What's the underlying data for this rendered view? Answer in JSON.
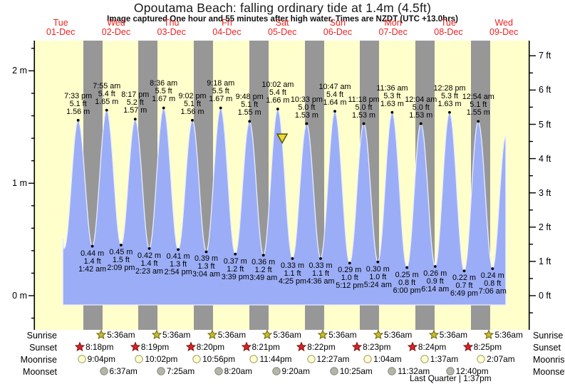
{
  "header": {
    "title": "Opoutama Beach: falling  ordinary tide at 1.4m (4.5ft)",
    "subtitle": "Image captured One hour and 55 minutes after high water. Times are NZDT (UTC +13.0hrs)"
  },
  "chart_data": {
    "type": "area",
    "title": "Opoutama Beach: falling  ordinary tide at 1.4m (4.5ft)",
    "days": [
      {
        "name": "Tue",
        "date": "01-Dec"
      },
      {
        "name": "Wed",
        "date": "02-Dec"
      },
      {
        "name": "Thu",
        "date": "03-Dec"
      },
      {
        "name": "Fri",
        "date": "04-Dec"
      },
      {
        "name": "Sat",
        "date": "05-Dec"
      },
      {
        "name": "Sun",
        "date": "06-Dec"
      },
      {
        "name": "Mon",
        "date": "07-Dec"
      },
      {
        "name": "Tue",
        "date": "08-Dec"
      },
      {
        "name": "Wed",
        "date": "09-Dec"
      }
    ],
    "y_axis_left": {
      "unit": "m",
      "ticks": [
        {
          "m": 0,
          "label": "0 m"
        },
        {
          "m": 1,
          "label": "1 m"
        },
        {
          "m": 2,
          "label": "2 m"
        }
      ]
    },
    "y_axis_right": {
      "unit": "ft",
      "tick_labels": [
        "0 ft",
        "1 ft",
        "2 ft",
        "3 ft",
        "4 ft",
        "5 ft",
        "6 ft",
        "7 ft"
      ]
    },
    "tide_events": [
      {
        "type": "high",
        "day": 0,
        "time": "7:33 pm",
        "m": 1.56,
        "m_label": "1.56 m",
        "ft_label": "5.1 ft"
      },
      {
        "type": "low",
        "day": 1,
        "time": "1:42 am",
        "m": 0.44,
        "m_label": "0.44 m",
        "ft_label": "1.4 ft"
      },
      {
        "type": "high",
        "day": 1,
        "time": "7:55 am",
        "m": 1.65,
        "m_label": "1.65 m",
        "ft_label": "5.4 ft"
      },
      {
        "type": "low",
        "day": 1,
        "time": "2:09 pm",
        "m": 0.45,
        "m_label": "0.45 m",
        "ft_label": "1.5 ft"
      },
      {
        "type": "high",
        "day": 1,
        "time": "8:17 pm",
        "m": 1.57,
        "m_label": "1.57 m",
        "ft_label": "5.2 ft"
      },
      {
        "type": "low",
        "day": 2,
        "time": "2:23 am",
        "m": 0.42,
        "m_label": "0.42 m",
        "ft_label": "1.4 ft"
      },
      {
        "type": "high",
        "day": 2,
        "time": "8:36 am",
        "m": 1.67,
        "m_label": "1.67 m",
        "ft_label": "5.5 ft"
      },
      {
        "type": "low",
        "day": 2,
        "time": "2:54 pm",
        "m": 0.41,
        "m_label": "0.41 m",
        "ft_label": "1.3 ft"
      },
      {
        "type": "high",
        "day": 2,
        "time": "9:02 pm",
        "m": 1.56,
        "m_label": "1.56 m",
        "ft_label": "5.1 ft"
      },
      {
        "type": "low",
        "day": 3,
        "time": "3:04 am",
        "m": 0.39,
        "m_label": "0.39 m",
        "ft_label": "1.3 ft"
      },
      {
        "type": "high",
        "day": 3,
        "time": "9:18 am",
        "m": 1.67,
        "m_label": "1.67 m",
        "ft_label": "5.5 ft"
      },
      {
        "type": "low",
        "day": 3,
        "time": "3:39 pm",
        "m": 0.37,
        "m_label": "0.37 m",
        "ft_label": "1.2 ft"
      },
      {
        "type": "high",
        "day": 3,
        "time": "9:48 pm",
        "m": 1.55,
        "m_label": "1.55 m",
        "ft_label": "5.1 ft"
      },
      {
        "type": "low",
        "day": 4,
        "time": "3:49 am",
        "m": 0.36,
        "m_label": "0.36 m",
        "ft_label": "1.2 ft"
      },
      {
        "type": "high",
        "day": 4,
        "time": "10:02 am",
        "m": 1.66,
        "m_label": "1.66 m",
        "ft_label": "5.4 ft"
      },
      {
        "type": "low",
        "day": 4,
        "time": "4:25 pm",
        "m": 0.33,
        "m_label": "0.33 m",
        "ft_label": "1.1 ft"
      },
      {
        "type": "high",
        "day": 4,
        "time": "10:33 pm",
        "m": 1.53,
        "m_label": "1.53 m",
        "ft_label": "5.0 ft"
      },
      {
        "type": "low",
        "day": 5,
        "time": "4:36 am",
        "m": 0.33,
        "m_label": "0.33 m",
        "ft_label": "1.1 ft"
      },
      {
        "type": "high",
        "day": 5,
        "time": "10:47 am",
        "m": 1.64,
        "m_label": "1.64 m",
        "ft_label": "5.4 ft"
      },
      {
        "type": "low",
        "day": 5,
        "time": "5:12 pm",
        "m": 0.29,
        "m_label": "0.29 m",
        "ft_label": "1.0 ft"
      },
      {
        "type": "high",
        "day": 5,
        "time": "11:18 pm",
        "m": 1.53,
        "m_label": "1.53 m",
        "ft_label": "5.0 ft"
      },
      {
        "type": "low",
        "day": 6,
        "time": "5:24 am",
        "m": 0.3,
        "m_label": "0.30 m",
        "ft_label": "1.0 ft"
      },
      {
        "type": "high",
        "day": 6,
        "time": "11:36 am",
        "m": 1.63,
        "m_label": "1.63 m",
        "ft_label": "5.3 ft"
      },
      {
        "type": "low",
        "day": 6,
        "time": "6:00 pm",
        "m": 0.25,
        "m_label": "0.25 m",
        "ft_label": "0.8 ft"
      },
      {
        "type": "high",
        "day": 7,
        "time": "12:04 am",
        "m": 1.53,
        "m_label": "1.53 m",
        "ft_label": "5.0 ft"
      },
      {
        "type": "low",
        "day": 7,
        "time": "6:14 am",
        "m": 0.26,
        "m_label": "0.26 m",
        "ft_label": "0.9 ft"
      },
      {
        "type": "high",
        "day": 7,
        "time": "12:28 pm",
        "m": 1.63,
        "m_label": "1.63 m",
        "ft_label": "5.3 ft"
      },
      {
        "type": "low",
        "day": 7,
        "time": "6:49 pm",
        "m": 0.22,
        "m_label": "0.22 m",
        "ft_label": "0.7 ft"
      },
      {
        "type": "high",
        "day": 8,
        "time": "12:54 am",
        "m": 1.55,
        "m_label": "1.55 m",
        "ft_label": "5.1 ft"
      },
      {
        "type": "low",
        "day": 8,
        "time": "7:06 am",
        "m": 0.24,
        "m_label": "0.24 m",
        "ft_label": "0.8 ft"
      }
    ],
    "curve_edges": {
      "start": {
        "day": 0,
        "time": "12:55 pm",
        "m": 0.51
      },
      "start_dip": {
        "day": 0,
        "time": "1:30 pm",
        "m": 0.42
      },
      "end": {
        "day": 8,
        "time": "12:50 pm",
        "m": 1.42
      }
    },
    "current_time_marker": {
      "day": 4,
      "time": "11:57 am",
      "m": 1.4
    },
    "colors": {
      "plot_bg": "#ffffcc",
      "night_band": "#979797",
      "tide_fill": "#9badf6",
      "tide_outline": "#e8ecfb",
      "day_label": "#ee2222",
      "marker_fill": "#e9d832",
      "marker_border": "#56520a",
      "axis": "#000000"
    }
  },
  "almanac": {
    "rows": [
      {
        "label": "Sunrise",
        "icon": "sunrise-star-icon",
        "shape": "star",
        "icon_fill": "#c9bc2f",
        "icon_border": "#6b6400",
        "entries": [
          {
            "day": 1,
            "time": "5:36am"
          },
          {
            "day": 2,
            "time": "5:36am"
          },
          {
            "day": 3,
            "time": "5:36am"
          },
          {
            "day": 4,
            "time": "5:36am"
          },
          {
            "day": 5,
            "time": "5:36am"
          },
          {
            "day": 6,
            "time": "5:36am"
          },
          {
            "day": 7,
            "time": "5:36am"
          },
          {
            "day": 8,
            "time": "5:36am"
          }
        ]
      },
      {
        "label": "Sunset",
        "icon": "sunset-star-icon",
        "shape": "star",
        "icon_fill": "#dd2222",
        "icon_border": "#7a0f0f",
        "entries": [
          {
            "day": 0,
            "time": "8:18pm"
          },
          {
            "day": 1,
            "time": "8:19pm"
          },
          {
            "day": 2,
            "time": "8:20pm"
          },
          {
            "day": 3,
            "time": "8:21pm"
          },
          {
            "day": 4,
            "time": "8:22pm"
          },
          {
            "day": 5,
            "time": "8:23pm"
          },
          {
            "day": 6,
            "time": "8:24pm"
          },
          {
            "day": 7,
            "time": "8:25pm"
          }
        ]
      },
      {
        "label": "Moonrise",
        "icon": "moonrise-circle-icon",
        "shape": "circle",
        "icon_fill": "#ffffcc",
        "icon_border": "#99996a",
        "entries": [
          {
            "day": 0,
            "time": "9:04pm"
          },
          {
            "day": 1,
            "time": "10:02pm"
          },
          {
            "day": 2,
            "time": "10:56pm"
          },
          {
            "day": 3,
            "time": "11:44pm"
          },
          {
            "day": 5,
            "time": "12:27am"
          },
          {
            "day": 6,
            "time": "1:04am"
          },
          {
            "day": 7,
            "time": "1:37am"
          },
          {
            "day": 8,
            "time": "2:07am"
          }
        ]
      },
      {
        "label": "Moonset",
        "icon": "moonset-circle-icon",
        "shape": "circle",
        "icon_fill": "#b6b6a8",
        "icon_border": "#84847a",
        "entries": [
          {
            "day": 1,
            "time": "6:37am"
          },
          {
            "day": 2,
            "time": "7:25am"
          },
          {
            "day": 3,
            "time": "8:20am"
          },
          {
            "day": 4,
            "time": "9:20am"
          },
          {
            "day": 5,
            "time": "10:25am"
          },
          {
            "day": 6,
            "time": "11:32am"
          },
          {
            "day": 7,
            "time": "12:40pm"
          }
        ]
      }
    ],
    "footer": "Last Quarter | 1:37pm"
  }
}
